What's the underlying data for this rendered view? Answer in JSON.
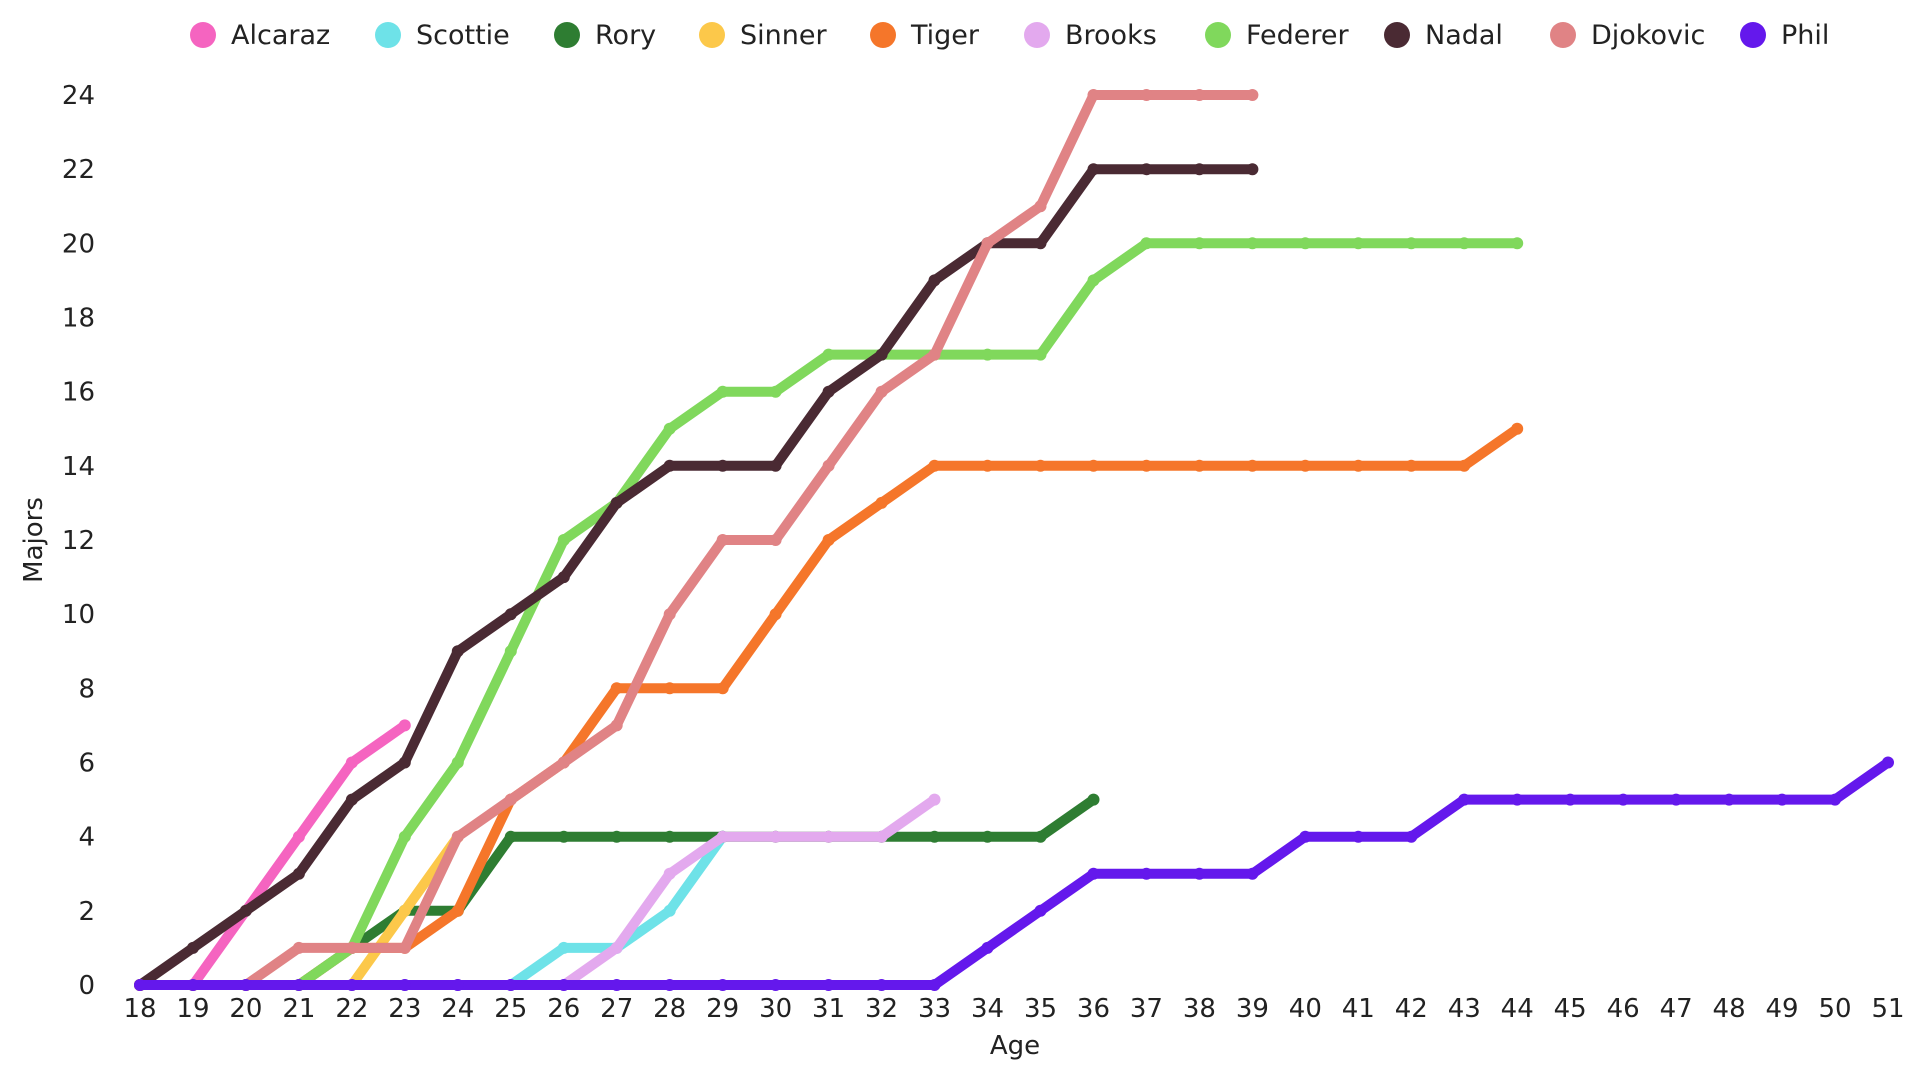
{
  "chart_data": {
    "type": "line",
    "title": "",
    "xlabel": "Age",
    "ylabel": "Majors",
    "xlim": [
      18,
      51
    ],
    "ylim": [
      0,
      24
    ],
    "x_ticks": [
      18,
      19,
      20,
      21,
      22,
      23,
      24,
      25,
      26,
      27,
      28,
      29,
      30,
      31,
      32,
      33,
      34,
      35,
      36,
      37,
      38,
      39,
      40,
      41,
      42,
      43,
      44,
      45,
      46,
      47,
      48,
      49,
      50,
      51
    ],
    "y_ticks": [
      0,
      2,
      4,
      6,
      8,
      10,
      12,
      14,
      16,
      18,
      20,
      22,
      24
    ],
    "grid": false,
    "legend_position": "top",
    "series": [
      {
        "name": "Alcaraz",
        "color": "#f564c0",
        "start_age": 18,
        "values": [
          0,
          0,
          2,
          4,
          6,
          7
        ]
      },
      {
        "name": "Scottie",
        "color": "#6ee2e8",
        "start_age": 18,
        "values": [
          0,
          0,
          0,
          0,
          0,
          0,
          0,
          0,
          1,
          1,
          2,
          4
        ]
      },
      {
        "name": "Rory",
        "color": "#2e7d32",
        "start_age": 18,
        "values": [
          0,
          0,
          0,
          0,
          1,
          2,
          2,
          4,
          4,
          4,
          4,
          4,
          4,
          4,
          4,
          4,
          4,
          4,
          5
        ]
      },
      {
        "name": "Sinner",
        "color": "#fcc84a",
        "start_age": 18,
        "values": [
          0,
          0,
          0,
          0,
          0,
          2,
          4
        ]
      },
      {
        "name": "Tiger",
        "color": "#f5762a",
        "start_age": 18,
        "values": [
          0,
          0,
          0,
          0,
          1,
          1,
          2,
          5,
          6,
          8,
          8,
          8,
          10,
          12,
          13,
          14,
          14,
          14,
          14,
          14,
          14,
          14,
          14,
          14,
          14,
          14,
          15
        ]
      },
      {
        "name": "Brooks",
        "color": "#e3a9ee",
        "start_age": 18,
        "values": [
          0,
          0,
          0,
          0,
          0,
          0,
          0,
          0,
          0,
          1,
          3,
          4,
          4,
          4,
          4,
          5
        ]
      },
      {
        "name": "Federer",
        "color": "#80d85c",
        "start_age": 18,
        "values": [
          0,
          0,
          0,
          0,
          1,
          4,
          6,
          9,
          12,
          13,
          15,
          16,
          16,
          17,
          17,
          17,
          17,
          17,
          19,
          20,
          20,
          20,
          20,
          20,
          20,
          20,
          20
        ]
      },
      {
        "name": "Nadal",
        "color": "#4a2a33",
        "start_age": 18,
        "values": [
          0,
          1,
          2,
          3,
          5,
          6,
          9,
          10,
          11,
          13,
          14,
          14,
          14,
          16,
          17,
          19,
          20,
          20,
          22,
          22,
          22,
          22
        ]
      },
      {
        "name": "Djokovic",
        "color": "#e08385",
        "start_age": 18,
        "values": [
          0,
          0,
          0,
          1,
          1,
          1,
          4,
          5,
          6,
          7,
          10,
          12,
          12,
          14,
          16,
          17,
          20,
          21,
          24,
          24,
          24,
          24
        ]
      },
      {
        "name": "Phil",
        "color": "#6418ec",
        "start_age": 18,
        "values": [
          0,
          0,
          0,
          0,
          0,
          0,
          0,
          0,
          0,
          0,
          0,
          0,
          0,
          0,
          0,
          0,
          1,
          2,
          3,
          3,
          3,
          3,
          4,
          4,
          4,
          5,
          5,
          5,
          5,
          5,
          5,
          5,
          5,
          6
        ]
      }
    ]
  }
}
